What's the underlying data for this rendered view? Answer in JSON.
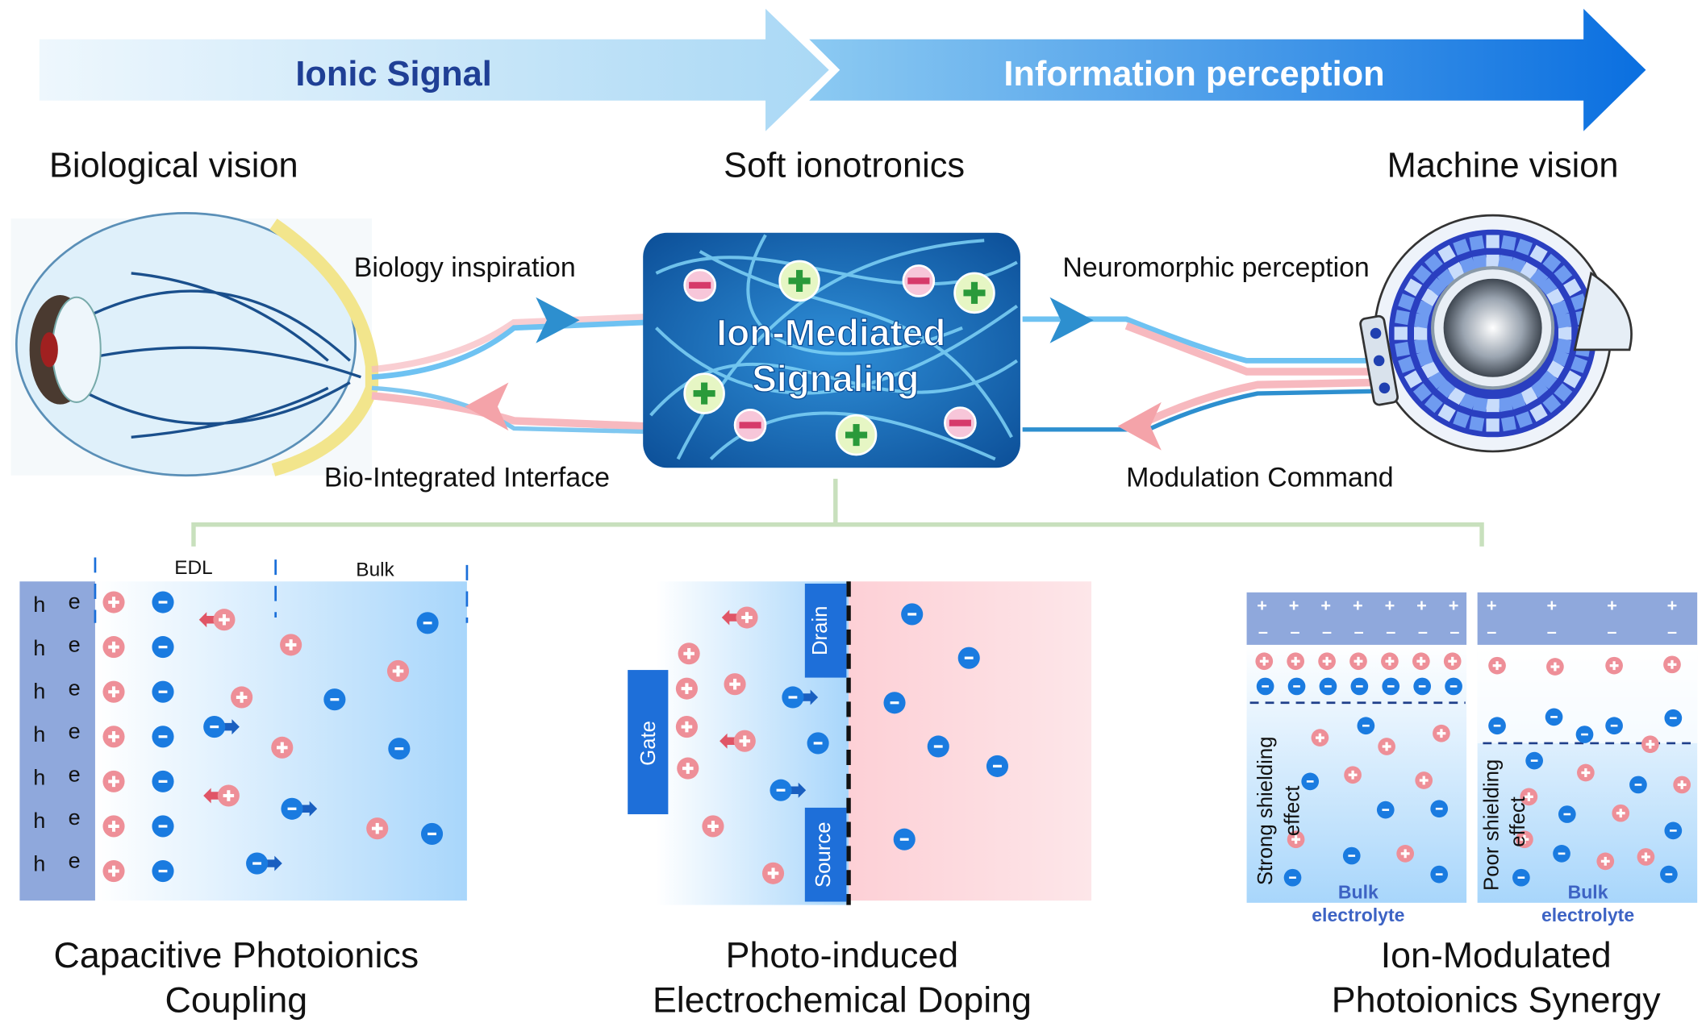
{
  "banner": {
    "left": "Ionic Signal",
    "right": "Information perception"
  },
  "headings": {
    "bio": "Biological vision",
    "soft": "Soft ionotronics",
    "machine": "Machine vision"
  },
  "center": {
    "line1": "Ion-Mediated",
    "line2": "Signaling"
  },
  "arrows": {
    "biology_inspiration": "Biology inspiration",
    "bio_interface": "Bio-Integrated Interface",
    "neuromorphic": "Neuromorphic perception",
    "modulation": "Modulation Command"
  },
  "panel1": {
    "edl": "EDL",
    "bulk": "Bulk",
    "h": "h",
    "e": "e",
    "caption1": "Capacitive Photoionics",
    "caption2": "Coupling"
  },
  "panel2": {
    "gate": "Gate",
    "drain": "Drain",
    "source": "Source",
    "caption1": "Photo-induced",
    "caption2": "Electrochemical Doping"
  },
  "panel3": {
    "strong1": "Strong shielding",
    "strong2": "effect",
    "poor1": "Poor shielding",
    "poor2": "effect",
    "bulk": "Bulk",
    "electrolyte": "electrolyte",
    "caption1": "Ion-Modulated",
    "caption2": "Photoionics Synergy"
  },
  "colors": {
    "cation": "#ee8f98",
    "anion": "#1a7be0",
    "electrode": "#8fa8dc",
    "gate": "#1e6fd9",
    "connector": "#c8e0bd"
  }
}
